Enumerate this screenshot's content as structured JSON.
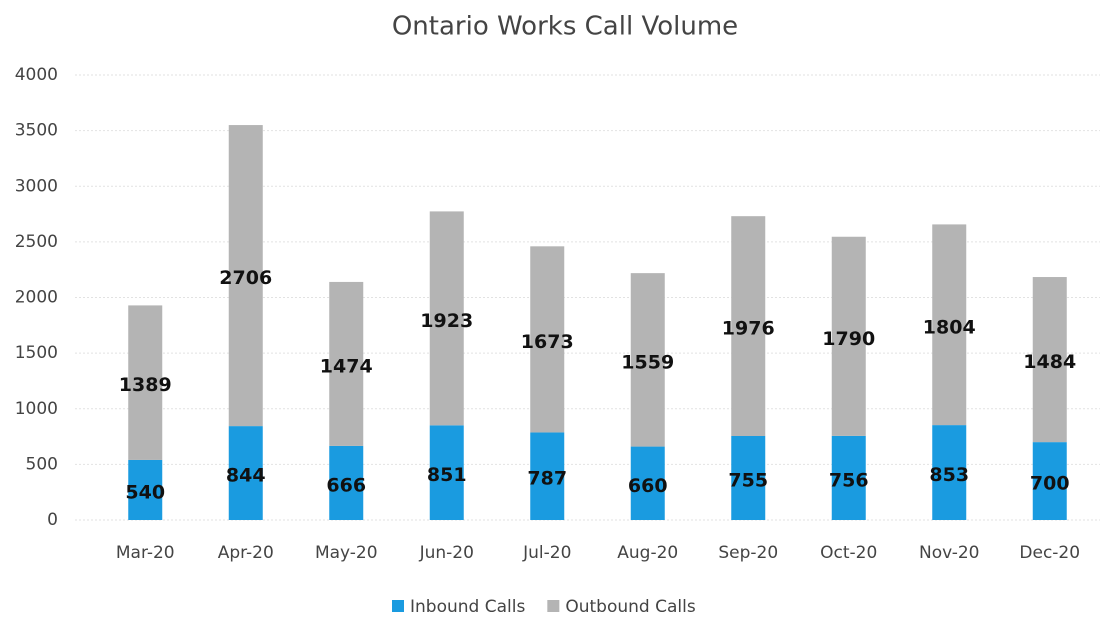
{
  "chart_data": {
    "type": "stacked_bar",
    "title": "Ontario Works Call Volume",
    "categories": [
      "Mar-20",
      "Apr-20",
      "May-20",
      "Jun-20",
      "Jul-20",
      "Aug-20",
      "Sep-20",
      "Oct-20",
      "Nov-20",
      "Dec-20"
    ],
    "series": [
      {
        "name": "Inbound Calls",
        "color": "#1a9be0",
        "values": [
          540,
          844,
          666,
          851,
          787,
          660,
          755,
          756,
          853,
          700
        ]
      },
      {
        "name": "Outbound Calls",
        "color": "#b4b4b4",
        "values": [
          1389,
          2706,
          1474,
          1923,
          1673,
          1559,
          1976,
          1790,
          1804,
          1484
        ]
      }
    ],
    "ylim": [
      0,
      4000
    ],
    "yticks": [
      0,
      500,
      1000,
      1500,
      2000,
      2500,
      3000,
      3500,
      4000
    ],
    "grid": true,
    "legend": "bottom"
  }
}
